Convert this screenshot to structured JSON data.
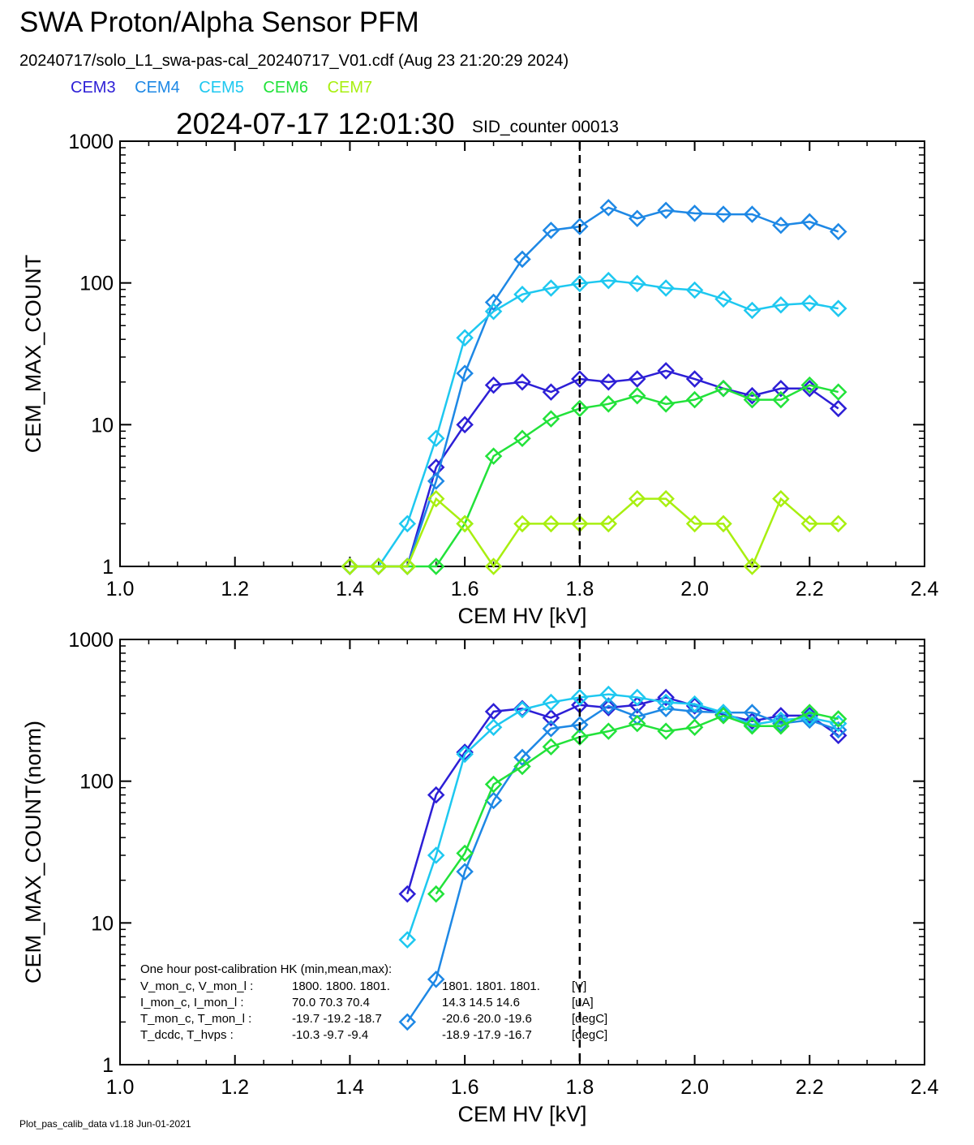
{
  "header": {
    "title": "SWA Proton/Alpha Sensor PFM",
    "subtitle": "20240717/solo_L1_swa-pas-cal_20240717_V01.cdf  (Aug 23 21:20:29 2024)",
    "timestamp": "2024-07-17 12:01:30",
    "sid_counter": "SID_counter 00013"
  },
  "legend": [
    {
      "name": "CEM3",
      "color": "#2d1fd6"
    },
    {
      "name": "CEM4",
      "color": "#1e88e5"
    },
    {
      "name": "CEM5",
      "color": "#1ec8f0"
    },
    {
      "name": "CEM6",
      "color": "#22e23a"
    },
    {
      "name": "CEM7",
      "color": "#a8ef10"
    }
  ],
  "footer": "Plot_pas_calib_data v1.18 Jun-01-2021",
  "hk_box": {
    "heading": "One hour post-calibration HK (min,mean,max):",
    "rows": [
      {
        "label": "V_mon_c, V_mon_l :",
        "left": "1800.  1800.  1801.",
        "right": "1801.  1801.  1801.",
        "unit": "[V]"
      },
      {
        "label": "I_mon_c,  I_mon_l :",
        "left": "70.0   70.3   70.4",
        "right": "14.3   14.5   14.6",
        "unit": "[uA]"
      },
      {
        "label": "T_mon_c, T_mon_l :",
        "left": "-19.7  -19.2  -18.7",
        "right": "-20.6  -20.0  -19.6",
        "unit": "[degC]"
      },
      {
        "label": "T_dcdc,    T_hvps :",
        "left": "-10.3   -9.7   -9.4",
        "right": "-18.9  -17.9  -16.7",
        "unit": "[degC]"
      }
    ]
  },
  "chart_data": [
    {
      "type": "line",
      "title": "",
      "xlabel": "CEM HV [kV]",
      "ylabel": "CEM_MAX_COUNT",
      "xlim": [
        1.0,
        2.4
      ],
      "ylim": [
        1,
        1000
      ],
      "yscale": "log",
      "x_ticks": [
        "1.0",
        "1.2",
        "1.4",
        "1.6",
        "1.8",
        "2.0",
        "2.2",
        "2.4"
      ],
      "y_ticks": [
        "1",
        "10",
        "100",
        "1000"
      ],
      "vline_x": 1.8,
      "series": [
        {
          "name": "CEM3",
          "color": "#2d1fd6",
          "x": [
            1.4,
            1.45,
            1.5,
            1.55,
            1.6,
            1.65,
            1.7,
            1.75,
            1.8,
            1.85,
            1.9,
            1.95,
            2.0,
            2.05,
            2.1,
            2.15,
            2.2,
            2.25
          ],
          "y": [
            1,
            1,
            1,
            5,
            10,
            19,
            20,
            17,
            21,
            20,
            21,
            24,
            21,
            18,
            16,
            18,
            18,
            13
          ]
        },
        {
          "name": "CEM4",
          "color": "#1e88e5",
          "x": [
            1.4,
            1.45,
            1.5,
            1.55,
            1.6,
            1.65,
            1.7,
            1.75,
            1.8,
            1.85,
            1.9,
            1.95,
            2.0,
            2.05,
            2.1,
            2.15,
            2.2,
            2.25
          ],
          "y": [
            1,
            1,
            1,
            4,
            23,
            73,
            147,
            235,
            250,
            340,
            285,
            325,
            310,
            305,
            305,
            255,
            270,
            230
          ]
        },
        {
          "name": "CEM5",
          "color": "#1ec8f0",
          "x": [
            1.4,
            1.45,
            1.5,
            1.55,
            1.6,
            1.65,
            1.7,
            1.75,
            1.8,
            1.85,
            1.9,
            1.95,
            2.0,
            2.05,
            2.1,
            2.15,
            2.2,
            2.25
          ],
          "y": [
            1,
            1,
            2,
            8,
            41,
            63,
            83,
            92,
            99,
            104,
            99,
            92,
            89,
            77,
            64,
            70,
            72,
            66
          ]
        },
        {
          "name": "CEM6",
          "color": "#22e23a",
          "x": [
            1.4,
            1.45,
            1.5,
            1.55,
            1.6,
            1.65,
            1.7,
            1.75,
            1.8,
            1.85,
            1.9,
            1.95,
            2.0,
            2.05,
            2.1,
            2.15,
            2.2,
            2.25
          ],
          "y": [
            1,
            1,
            1,
            1,
            2,
            6,
            8,
            11,
            13,
            14,
            16,
            14,
            15,
            18,
            15,
            15,
            19,
            17
          ]
        },
        {
          "name": "CEM7",
          "color": "#a8ef10",
          "x": [
            1.4,
            1.45,
            1.5,
            1.55,
            1.6,
            1.65,
            1.7,
            1.75,
            1.8,
            1.85,
            1.9,
            1.95,
            2.0,
            2.05,
            2.1,
            2.15,
            2.2,
            2.25
          ],
          "y": [
            1,
            1,
            1,
            3,
            2,
            1,
            2,
            2,
            2,
            2,
            3,
            3,
            2,
            2,
            1,
            3,
            2,
            2
          ]
        }
      ]
    },
    {
      "type": "line",
      "title": "",
      "xlabel": "CEM HV [kV]",
      "ylabel": "CEM_MAX_COUNT(norm)",
      "xlim": [
        1.0,
        2.4
      ],
      "ylim": [
        1,
        1000
      ],
      "yscale": "log",
      "x_ticks": [
        "1.0",
        "1.2",
        "1.4",
        "1.6",
        "1.8",
        "2.0",
        "2.2",
        "2.4"
      ],
      "y_ticks": [
        "1",
        "10",
        "100",
        "1000"
      ],
      "vline_x": 1.8,
      "series": [
        {
          "name": "CEM3",
          "color": "#2d1fd6",
          "x": [
            1.5,
            1.55,
            1.6,
            1.65,
            1.7,
            1.75,
            1.8,
            1.85,
            1.9,
            1.95,
            2.0,
            2.05,
            2.1,
            2.15,
            2.2,
            2.25
          ],
          "y": [
            16,
            80,
            160,
            310,
            325,
            280,
            345,
            330,
            345,
            390,
            340,
            295,
            265,
            290,
            290,
            210
          ]
        },
        {
          "name": "CEM4",
          "color": "#1e88e5",
          "x": [
            1.5,
            1.55,
            1.6,
            1.65,
            1.7,
            1.75,
            1.8,
            1.85,
            1.9,
            1.95,
            2.0,
            2.05,
            2.1,
            2.15,
            2.2,
            2.25
          ],
          "y": [
            2,
            4,
            23,
            73,
            147,
            235,
            250,
            340,
            285,
            325,
            310,
            305,
            305,
            255,
            270,
            230
          ]
        },
        {
          "name": "CEM5",
          "color": "#1ec8f0",
          "x": [
            1.5,
            1.55,
            1.6,
            1.65,
            1.7,
            1.75,
            1.8,
            1.85,
            1.9,
            1.95,
            2.0,
            2.05,
            2.1,
            2.15,
            2.2,
            2.25
          ],
          "y": [
            7.6,
            30,
            155,
            240,
            320,
            360,
            390,
            410,
            390,
            360,
            350,
            305,
            250,
            270,
            280,
            255
          ]
        },
        {
          "name": "CEM6",
          "color": "#22e23a",
          "x": [
            1.55,
            1.6,
            1.65,
            1.7,
            1.75,
            1.8,
            1.85,
            1.9,
            1.95,
            2.0,
            2.05,
            2.1,
            2.15,
            2.2,
            2.25
          ],
          "y": [
            16,
            31,
            95,
            127,
            175,
            205,
            225,
            255,
            225,
            240,
            290,
            245,
            245,
            305,
            275
          ]
        }
      ]
    }
  ]
}
